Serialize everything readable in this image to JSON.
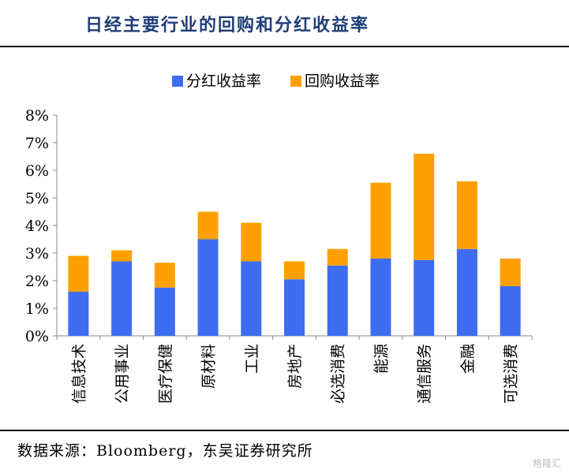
{
  "title": "日经主要行业的回购和分红收益率",
  "source": "数据来源：Bloomberg，东吴证券研究所",
  "watermark": "格隆汇",
  "chart_data": {
    "type": "bar",
    "stacked": true,
    "categories": [
      "信息技术",
      "公用事业",
      "医疗保健",
      "原材料",
      "工业",
      "房地产",
      "必选消费",
      "能源",
      "通信服务",
      "金融",
      "可选消费"
    ],
    "series": [
      {
        "name": "分红收益率",
        "color": "#3f6df2",
        "values": [
          1.6,
          2.7,
          1.75,
          3.5,
          2.7,
          2.05,
          2.55,
          2.8,
          2.75,
          3.15,
          1.8
        ]
      },
      {
        "name": "回购收益率",
        "color": "#ffa000",
        "values": [
          1.3,
          0.4,
          0.9,
          1.0,
          1.4,
          0.65,
          0.6,
          2.75,
          3.85,
          2.45,
          1.0
        ]
      }
    ],
    "y_ticks": [
      "0%",
      "1%",
      "2%",
      "3%",
      "4%",
      "5%",
      "6%",
      "7%",
      "8%"
    ],
    "ylim": [
      0,
      8
    ],
    "grid": false,
    "legend": "top-center"
  }
}
